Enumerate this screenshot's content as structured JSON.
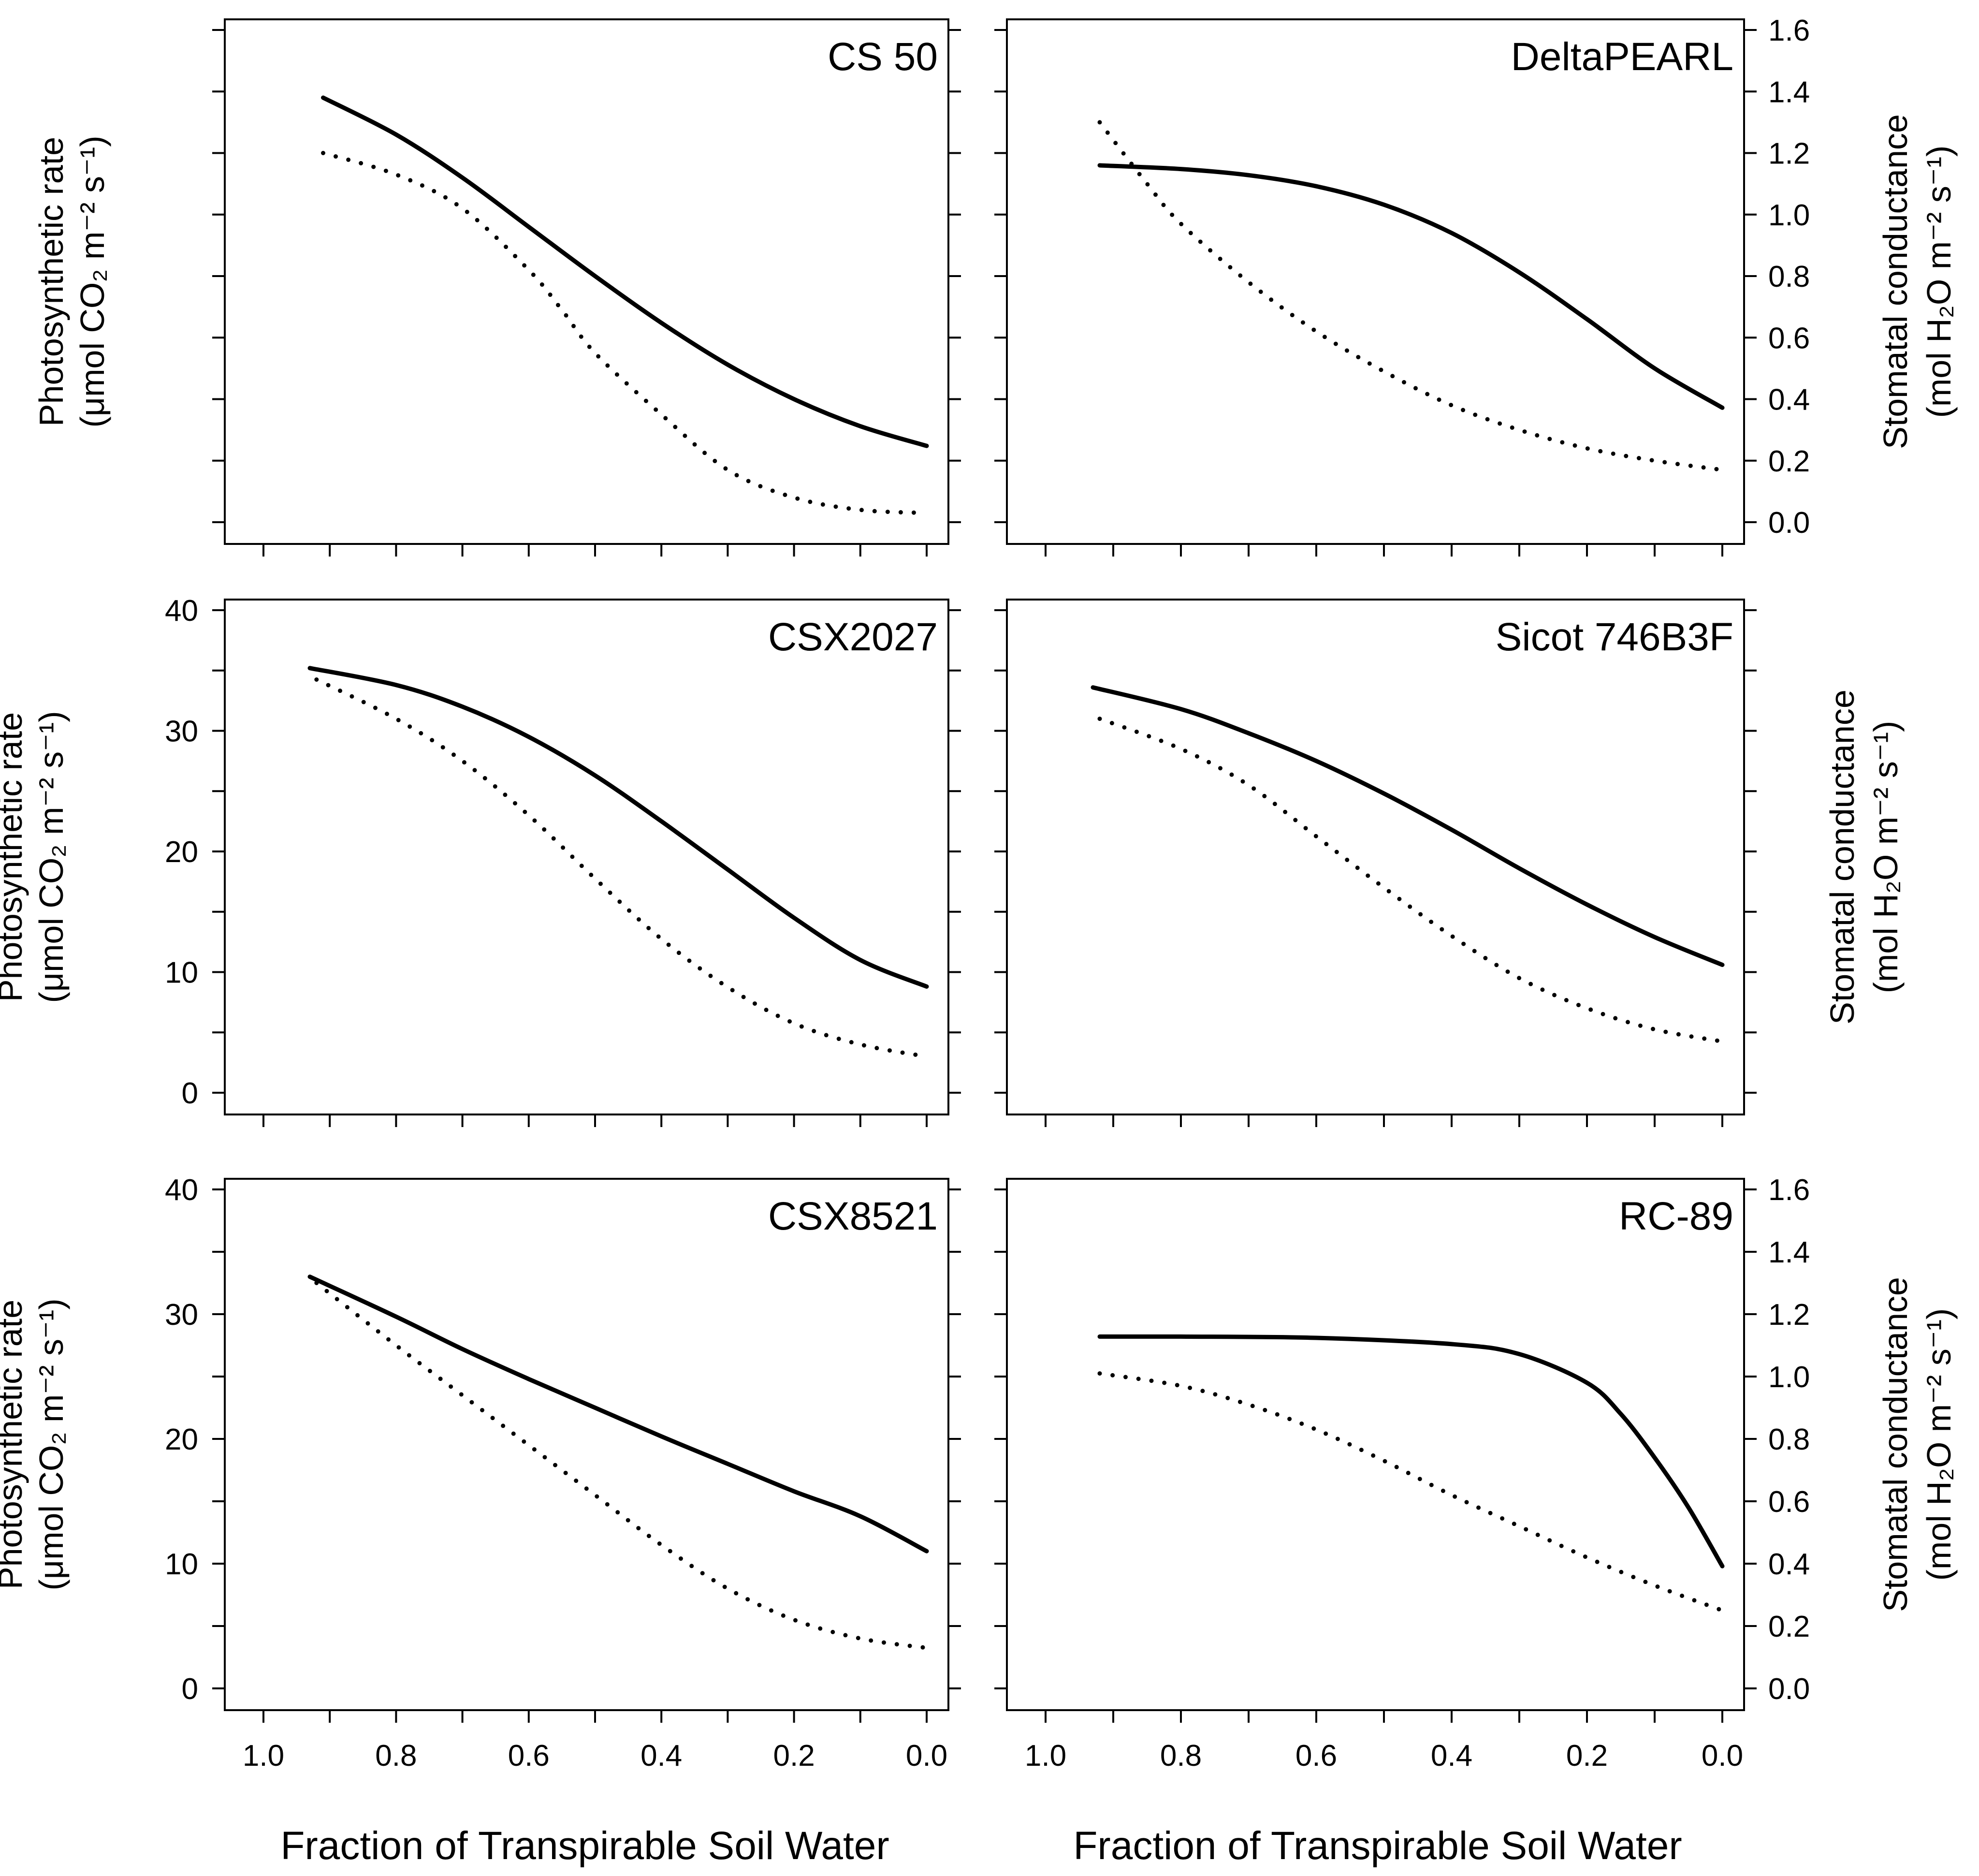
{
  "x_axis_title": "Fraction of Transpirable Soil Water",
  "chart_data": [
    {
      "type": "line",
      "title": "CS 50",
      "xlabel": "",
      "ylabel_left": [
        "Photosynthetic rate",
        "(μmol CO₂ m⁻² s⁻¹)"
      ],
      "ylabel_right": [],
      "xlim": [
        1.0,
        0.0
      ],
      "ylim_left": [
        0,
        40
      ],
      "ylim_right": [
        0,
        1.6
      ],
      "left_tick_labels": [],
      "right_tick_labels": [],
      "x_tick_labels": [],
      "series": [
        {
          "name": "Photosynthetic rate",
          "axis": "left",
          "style": "solid",
          "x": [
            0.91,
            0.8,
            0.7,
            0.6,
            0.5,
            0.4,
            0.3,
            0.2,
            0.1,
            0.0
          ],
          "y": [
            34.5,
            31.5,
            28.0,
            24.0,
            20.0,
            16.2,
            12.8,
            10.0,
            7.8,
            6.2
          ]
        },
        {
          "name": "Stomatal conductance",
          "axis": "right",
          "style": "dotted",
          "x": [
            0.91,
            0.8,
            0.7,
            0.6,
            0.55,
            0.5,
            0.4,
            0.3,
            0.2,
            0.1,
            0.0
          ],
          "y": [
            1.2,
            1.13,
            1.02,
            0.82,
            0.69,
            0.55,
            0.35,
            0.17,
            0.08,
            0.04,
            0.03
          ]
        }
      ]
    },
    {
      "type": "line",
      "title": "DeltaPEARL",
      "xlabel": "",
      "ylabel_left": [],
      "ylabel_right": [
        "Stomatal conductance",
        "(mol H₂O m⁻² s⁻¹)"
      ],
      "xlim": [
        1.0,
        0.0
      ],
      "ylim_left": [
        0,
        40
      ],
      "ylim_right": [
        0,
        1.6
      ],
      "left_tick_labels": [],
      "right_tick_labels": [
        "0.0",
        "0.2",
        "0.4",
        "0.6",
        "0.8",
        "1.0",
        "1.2",
        "1.4",
        "1.6"
      ],
      "x_tick_labels": [],
      "series": [
        {
          "name": "Photosynthetic rate",
          "axis": "left",
          "style": "solid",
          "x": [
            0.92,
            0.8,
            0.7,
            0.6,
            0.5,
            0.4,
            0.3,
            0.2,
            0.1,
            0.0
          ],
          "y": [
            29.0,
            28.7,
            28.2,
            27.3,
            25.8,
            23.5,
            20.3,
            16.5,
            12.5,
            9.3
          ]
        },
        {
          "name": "Stomatal conductance",
          "axis": "right",
          "style": "dotted",
          "x": [
            0.92,
            0.85,
            0.8,
            0.7,
            0.6,
            0.5,
            0.4,
            0.3,
            0.2,
            0.1,
            0.0
          ],
          "y": [
            1.3,
            1.1,
            0.97,
            0.78,
            0.62,
            0.49,
            0.38,
            0.3,
            0.24,
            0.2,
            0.17
          ]
        }
      ]
    },
    {
      "type": "line",
      "title": "CSX2027",
      "xlabel": "",
      "ylabel_left": [
        "Photosynthetic rate",
        "(μmol CO₂ m⁻² s⁻¹)"
      ],
      "ylabel_right": [],
      "xlim": [
        1.0,
        0.0
      ],
      "ylim_left": [
        0,
        40
      ],
      "ylim_right": [
        0,
        1.6
      ],
      "left_tick_labels": [
        "0",
        "10",
        "20",
        "30",
        "40"
      ],
      "right_tick_labels": [],
      "x_tick_labels": [],
      "series": [
        {
          "name": "Photosynthetic rate",
          "axis": "left",
          "style": "solid",
          "x": [
            0.93,
            0.8,
            0.7,
            0.6,
            0.5,
            0.4,
            0.3,
            0.2,
            0.1,
            0.0
          ],
          "y": [
            35.2,
            33.8,
            32.0,
            29.5,
            26.3,
            22.5,
            18.5,
            14.5,
            11.0,
            8.8
          ]
        },
        {
          "name": "Stomatal conductance",
          "axis": "right",
          "style": "dotted",
          "x": [
            0.92,
            0.8,
            0.7,
            0.6,
            0.5,
            0.4,
            0.3,
            0.2,
            0.1,
            0.0
          ],
          "y": [
            1.37,
            1.24,
            1.1,
            0.92,
            0.71,
            0.51,
            0.35,
            0.23,
            0.16,
            0.12
          ]
        }
      ]
    },
    {
      "type": "line",
      "title": "Sicot 746B3F",
      "xlabel": "",
      "ylabel_left": [],
      "ylabel_right": [
        "Stomatal conductance",
        "(mol H₂O m⁻² s⁻¹)"
      ],
      "xlim": [
        1.0,
        0.0
      ],
      "ylim_left": [
        0,
        40
      ],
      "ylim_right": [
        0,
        1.6
      ],
      "left_tick_labels": [],
      "right_tick_labels": [],
      "x_tick_labels": [],
      "series": [
        {
          "name": "Photosynthetic rate",
          "axis": "left",
          "style": "solid",
          "x": [
            0.93,
            0.8,
            0.7,
            0.6,
            0.5,
            0.4,
            0.3,
            0.2,
            0.1,
            0.0
          ],
          "y": [
            33.6,
            31.8,
            29.8,
            27.5,
            24.8,
            21.8,
            18.6,
            15.6,
            12.9,
            10.6
          ]
        },
        {
          "name": "Stomatal conductance",
          "axis": "right",
          "style": "dotted",
          "x": [
            0.92,
            0.8,
            0.7,
            0.6,
            0.5,
            0.4,
            0.3,
            0.2,
            0.1,
            0.0
          ],
          "y": [
            1.24,
            1.14,
            1.02,
            0.85,
            0.68,
            0.52,
            0.38,
            0.28,
            0.21,
            0.17
          ]
        }
      ]
    },
    {
      "type": "line",
      "title": "CSX8521",
      "xlabel": "",
      "ylabel_left": [
        "Photosynthetic rate",
        "(μmol CO₂ m⁻² s⁻¹)"
      ],
      "ylabel_right": [],
      "xlim": [
        1.0,
        0.0
      ],
      "ylim_left": [
        0,
        40
      ],
      "ylim_right": [
        0,
        1.6
      ],
      "left_tick_labels": [
        "0",
        "10",
        "20",
        "30",
        "40"
      ],
      "right_tick_labels": [],
      "x_tick_labels": [
        "1.0",
        "0.8",
        "0.6",
        "0.4",
        "0.2",
        "0.0"
      ],
      "series": [
        {
          "name": "Photosynthetic rate",
          "axis": "left",
          "style": "solid",
          "x": [
            0.93,
            0.8,
            0.7,
            0.6,
            0.5,
            0.4,
            0.3,
            0.2,
            0.1,
            0.0
          ],
          "y": [
            33.0,
            29.8,
            27.2,
            24.8,
            22.5,
            20.2,
            18.0,
            15.8,
            13.8,
            11.0
          ]
        },
        {
          "name": "Stomatal conductance",
          "axis": "right",
          "style": "dotted",
          "x": [
            0.92,
            0.8,
            0.7,
            0.6,
            0.5,
            0.4,
            0.3,
            0.2,
            0.1,
            0.0
          ],
          "y": [
            1.3,
            1.1,
            0.94,
            0.78,
            0.62,
            0.46,
            0.32,
            0.22,
            0.16,
            0.13
          ]
        }
      ]
    },
    {
      "type": "line",
      "title": "RC-89",
      "xlabel": "",
      "ylabel_left": [],
      "ylabel_right": [
        "Stomatal conductance",
        "(mol H₂O m⁻² s⁻¹)"
      ],
      "xlim": [
        1.0,
        0.0
      ],
      "ylim_left": [
        0,
        40
      ],
      "ylim_right": [
        0,
        1.6
      ],
      "left_tick_labels": [],
      "right_tick_labels": [
        "0.0",
        "0.2",
        "0.4",
        "0.6",
        "0.8",
        "1.0",
        "1.2",
        "1.4",
        "1.6"
      ],
      "x_tick_labels": [
        "1.0",
        "0.8",
        "0.6",
        "0.4",
        "0.2",
        "0.0"
      ],
      "series": [
        {
          "name": "Photosynthetic rate",
          "axis": "left",
          "style": "solid",
          "x": [
            0.92,
            0.8,
            0.6,
            0.4,
            0.3,
            0.2,
            0.15,
            0.1,
            0.05,
            0.0
          ],
          "y": [
            28.2,
            28.2,
            28.1,
            27.6,
            26.8,
            24.5,
            22.0,
            18.5,
            14.5,
            9.8
          ]
        },
        {
          "name": "Stomatal conductance",
          "axis": "right",
          "style": "dotted",
          "x": [
            0.92,
            0.8,
            0.7,
            0.6,
            0.5,
            0.4,
            0.3,
            0.2,
            0.1,
            0.0
          ],
          "y": [
            1.01,
            0.97,
            0.91,
            0.83,
            0.73,
            0.62,
            0.52,
            0.42,
            0.33,
            0.25
          ]
        }
      ]
    }
  ]
}
